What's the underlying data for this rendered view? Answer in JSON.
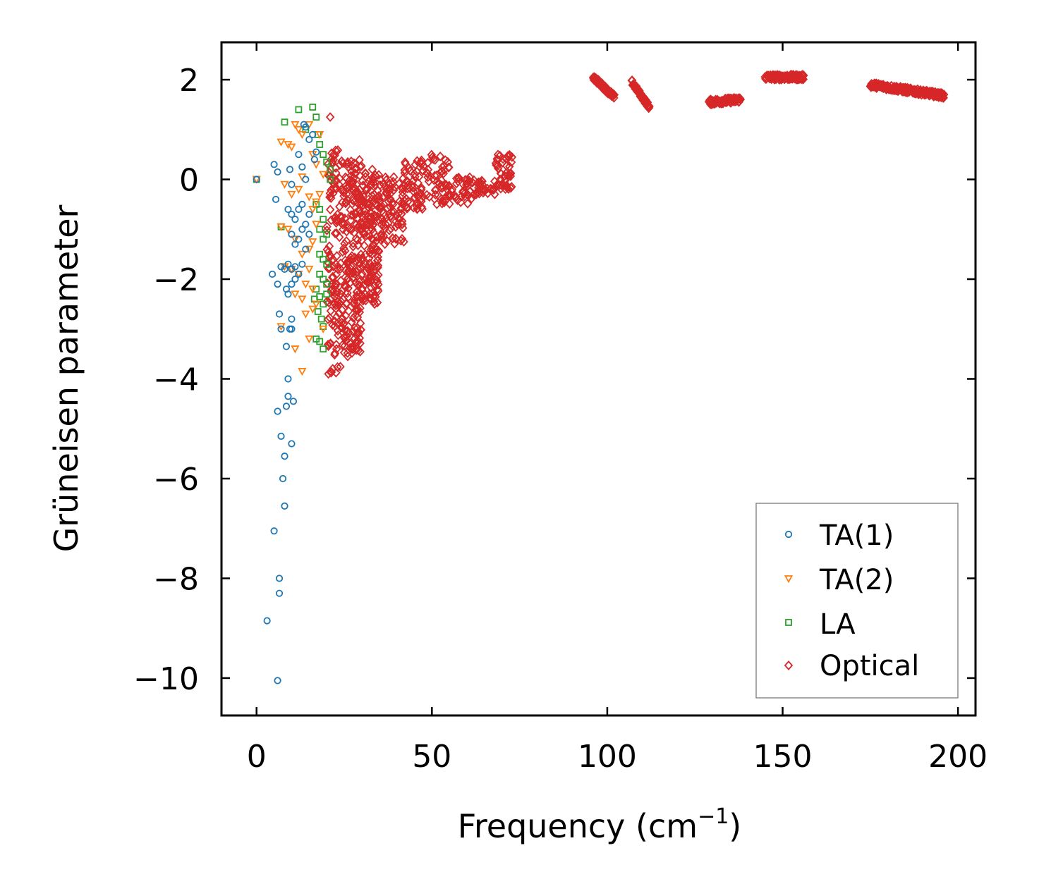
{
  "chart_data": {
    "type": "scatter",
    "title": "",
    "xlabel": "Frequency (cm",
    "xlabel_superscript": "−1",
    "xlabel_suffix": ")",
    "ylabel": "Grüneisen parameter",
    "xlim": [
      -10,
      205
    ],
    "ylim": [
      -10.75,
      2.75
    ],
    "x_ticks": [
      0,
      50,
      100,
      150,
      200
    ],
    "x_tick_labels": [
      "0",
      "50",
      "100",
      "150",
      "200"
    ],
    "y_ticks": [
      2,
      0,
      -2,
      -4,
      -6,
      -8,
      -10
    ],
    "y_tick_labels": [
      "2",
      "0",
      "−2",
      "−4",
      "−6",
      "−8",
      "−10"
    ],
    "grid": false,
    "legend_position": "lower-right",
    "series": [
      {
        "name": "TA(1)",
        "marker": "circle",
        "color": "#1f77b4",
        "points": [
          [
            0,
            0
          ],
          [
            5,
            0.3
          ],
          [
            5.5,
            -0.4
          ],
          [
            6,
            0.15
          ],
          [
            9.5,
            0.2
          ],
          [
            10,
            -0.1
          ],
          [
            12,
            0.5
          ],
          [
            13,
            0.25
          ],
          [
            14,
            0.0
          ],
          [
            14,
            1.05
          ],
          [
            15,
            0.8
          ],
          [
            16,
            0.9
          ],
          [
            16.5,
            0.4
          ],
          [
            17,
            0.55
          ],
          [
            13.5,
            1.1
          ],
          [
            9,
            -0.6
          ],
          [
            10,
            -0.7
          ],
          [
            11,
            -0.8
          ],
          [
            12,
            -0.6
          ],
          [
            13,
            -0.5
          ],
          [
            14,
            -0.9
          ],
          [
            15,
            -0.7
          ],
          [
            10,
            -1.1
          ],
          [
            11,
            -1.3
          ],
          [
            12,
            -1.2
          ],
          [
            13,
            -1.0
          ],
          [
            14,
            -1.4
          ],
          [
            15,
            -1.1
          ],
          [
            9,
            -1.7
          ],
          [
            10,
            -1.8
          ],
          [
            11,
            -1.75
          ],
          [
            12,
            -1.9
          ],
          [
            13,
            -1.7
          ],
          [
            4.5,
            -1.9
          ],
          [
            8,
            -1.8
          ],
          [
            7,
            -1.75
          ],
          [
            6,
            -2.1
          ],
          [
            8.5,
            -2.2
          ],
          [
            9,
            -2.3
          ],
          [
            10,
            -2.1
          ],
          [
            11,
            -2.0
          ],
          [
            6.5,
            -2.7
          ],
          [
            10,
            -2.8
          ],
          [
            9.5,
            -3.0
          ],
          [
            7,
            -3.0
          ],
          [
            10,
            -3.0
          ],
          [
            8.5,
            -3.35
          ],
          [
            9,
            -4.0
          ],
          [
            9,
            -4.35
          ],
          [
            10.5,
            -4.45
          ],
          [
            8.5,
            -4.55
          ],
          [
            6,
            -4.65
          ],
          [
            7,
            -5.15
          ],
          [
            10,
            -5.3
          ],
          [
            8,
            -5.55
          ],
          [
            7.5,
            -6.0
          ],
          [
            8,
            -6.55
          ],
          [
            5,
            -7.05
          ],
          [
            6.5,
            -8.0
          ],
          [
            6.5,
            -8.3
          ],
          [
            3,
            -8.85
          ],
          [
            6,
            -10.05
          ]
        ]
      },
      {
        "name": "TA(2)",
        "marker": "triangle-down",
        "color": "#ff7f0e",
        "points": [
          [
            0,
            0
          ],
          [
            7,
            0.75
          ],
          [
            9,
            0.7
          ],
          [
            10,
            0.65
          ],
          [
            11,
            1.1
          ],
          [
            12,
            1.0
          ],
          [
            13,
            0.9
          ],
          [
            15,
            1.1
          ],
          [
            16,
            0.5
          ],
          [
            17,
            0.3
          ],
          [
            18,
            0.9
          ],
          [
            19,
            0.1
          ],
          [
            8,
            -0.1
          ],
          [
            10,
            -0.3
          ],
          [
            12,
            -0.2
          ],
          [
            13,
            0.05
          ],
          [
            15,
            -0.35
          ],
          [
            16,
            -0.6
          ],
          [
            17,
            -0.45
          ],
          [
            18,
            -0.3
          ],
          [
            7,
            -0.95
          ],
          [
            9,
            -1.0
          ],
          [
            11,
            -1.2
          ],
          [
            13,
            -1.5
          ],
          [
            15,
            -1.4
          ],
          [
            16,
            -1.25
          ],
          [
            17,
            -0.9
          ],
          [
            8,
            -1.75
          ],
          [
            10,
            -1.8
          ],
          [
            12,
            -1.9
          ],
          [
            14,
            -2.1
          ],
          [
            15,
            -1.8
          ],
          [
            16,
            -2.2
          ],
          [
            11,
            -2.3
          ],
          [
            13,
            -2.4
          ],
          [
            14,
            -2.7
          ],
          [
            16,
            -2.6
          ],
          [
            17,
            -2.5
          ],
          [
            7,
            -2.95
          ],
          [
            11,
            -3.4
          ],
          [
            15,
            -3.2
          ],
          [
            19,
            -3.0
          ],
          [
            13,
            -3.85
          ]
        ]
      },
      {
        "name": "LA",
        "marker": "square",
        "color": "#2ca02c",
        "points": [
          [
            0,
            0
          ],
          [
            7,
            -0.95
          ],
          [
            8,
            1.15
          ],
          [
            12,
            1.4
          ],
          [
            14,
            1.0
          ],
          [
            16,
            1.45
          ],
          [
            17,
            1.25
          ],
          [
            17.5,
            0.9
          ],
          [
            18,
            0.7
          ],
          [
            19,
            0.5
          ],
          [
            20,
            0.35
          ],
          [
            21,
            0.2
          ],
          [
            21,
            0.0
          ],
          [
            17,
            -0.5
          ],
          [
            18,
            -0.6
          ],
          [
            19,
            -0.8
          ],
          [
            18,
            -1.0
          ],
          [
            19,
            -1.2
          ],
          [
            20,
            -1.1
          ],
          [
            18,
            -1.5
          ],
          [
            19,
            -1.6
          ],
          [
            20,
            -1.7
          ],
          [
            18,
            -1.9
          ],
          [
            19,
            -2.0
          ],
          [
            20,
            -2.1
          ],
          [
            17,
            -2.2
          ],
          [
            18,
            -2.35
          ],
          [
            19,
            -2.5
          ],
          [
            20,
            -2.3
          ],
          [
            16.5,
            -2.4
          ],
          [
            17.5,
            -2.65
          ],
          [
            18.5,
            -2.8
          ],
          [
            19,
            -2.95
          ],
          [
            17,
            -3.2
          ],
          [
            19,
            -3.4
          ],
          [
            18,
            -3.25
          ]
        ]
      },
      {
        "name": "Optical",
        "marker": "diamond",
        "color": "#d62728",
        "ranges": [
          [
            20,
            24,
            -3.9,
            0.6,
            120
          ],
          [
            24,
            30,
            -3.5,
            0.4,
            220
          ],
          [
            30,
            35,
            -2.5,
            0.2,
            160
          ],
          [
            35,
            42,
            -1.3,
            0.1,
            90
          ],
          [
            42,
            48,
            -0.6,
            0.4,
            60
          ],
          [
            48,
            55,
            -0.5,
            0.5,
            50
          ],
          [
            55,
            62,
            -0.5,
            0.1,
            40
          ],
          [
            62,
            68,
            -0.3,
            0.0,
            30
          ],
          [
            68,
            73,
            -0.2,
            0.5,
            45
          ]
        ],
        "bands": [
          [
            96,
            102,
            2.05,
            1.65
          ],
          [
            107,
            112,
            1.95,
            1.45
          ],
          [
            129,
            138,
            1.55,
            1.6
          ],
          [
            145,
            156,
            2.05,
            2.05
          ],
          [
            175,
            196,
            1.9,
            1.68
          ]
        ],
        "points": [
          [
            21,
            1.25
          ],
          [
            22,
            0.5
          ],
          [
            26,
            0.35
          ],
          [
            33,
            0.2
          ],
          [
            20.5,
            -3.9
          ],
          [
            26,
            -3.55
          ],
          [
            29,
            -3.25
          ],
          [
            42,
            -1.25
          ]
        ]
      }
    ]
  }
}
